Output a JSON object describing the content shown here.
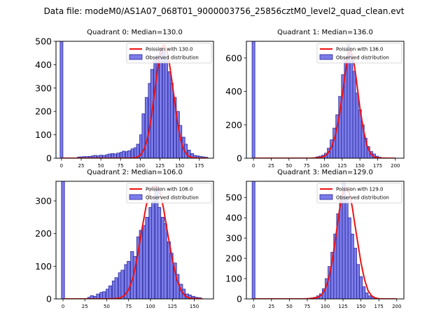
{
  "suptitle": "Data file: modeM0/AS1A07_068T01_9000003756_25856cztM0_level2_quad_clean.evt",
  "colors": {
    "poisson": "#ee1111",
    "bar_fill": "#7b7bea",
    "bar_edge": "#2a2a9a",
    "axis": "#000000"
  },
  "chart_data": [
    {
      "type": "bar",
      "title": "Quadrant 0: Median=130.0",
      "median": 130.0,
      "legend": {
        "poisson": "Poission with 130.0",
        "observed": "Observed distribution",
        "location": "top-right"
      },
      "xlim": [
        -7,
        193
      ],
      "ylim": [
        0,
        500
      ],
      "xticks": [
        0,
        25,
        50,
        75,
        100,
        125,
        150,
        175
      ],
      "yticks": [
        0,
        100,
        200,
        300,
        400,
        500
      ],
      "bin_width": 3.6,
      "zero_bin": 500,
      "bins_x": [
        22,
        25,
        29,
        32,
        36,
        40,
        43,
        47,
        50,
        54,
        58,
        61,
        65,
        68,
        72,
        76,
        79,
        83,
        86,
        90,
        94,
        97,
        101,
        104,
        108,
        112,
        115,
        119,
        122,
        126,
        130,
        133,
        137,
        140,
        144,
        148,
        151,
        155,
        158,
        162,
        166,
        169,
        173,
        176,
        180,
        184
      ],
      "bins_y": [
        5,
        6,
        7,
        7,
        8,
        10,
        12,
        10,
        13,
        12,
        15,
        18,
        20,
        18,
        22,
        25,
        30,
        28,
        32,
        40,
        45,
        60,
        100,
        190,
        260,
        320,
        380,
        420,
        440,
        470,
        460,
        420,
        370,
        320,
        260,
        200,
        140,
        90,
        60,
        35,
        20,
        12,
        10,
        8,
        6,
        4
      ],
      "poisson_x": [
        0,
        5,
        10,
        15,
        20,
        25,
        30,
        35,
        40,
        45,
        50,
        55,
        60,
        65,
        70,
        75,
        80,
        85,
        90,
        95,
        100,
        105,
        108,
        111,
        114,
        117,
        120,
        123,
        126,
        129,
        130,
        131,
        134,
        137,
        140,
        143,
        146,
        149,
        152,
        155,
        160,
        165,
        170,
        175,
        180,
        185
      ],
      "poisson_y": [
        0,
        0,
        0,
        0,
        0,
        0,
        0,
        0,
        0,
        0,
        0,
        0,
        0,
        0,
        0,
        0,
        0,
        0,
        1,
        3,
        12,
        40,
        70,
        115,
        175,
        250,
        330,
        405,
        460,
        482,
        484,
        482,
        455,
        405,
        335,
        260,
        185,
        120,
        70,
        38,
        12,
        3,
        1,
        0,
        0,
        0
      ]
    },
    {
      "type": "bar",
      "title": "Quadrant 1: Median=136.0",
      "median": 136.0,
      "legend": {
        "poisson": "Poission with 136.0",
        "observed": "Observed distribution",
        "location": "top-right"
      },
      "xlim": [
        -10,
        212
      ],
      "ylim": [
        0,
        700
      ],
      "xticks": [
        0,
        25,
        50,
        75,
        100,
        125,
        150,
        175,
        200
      ],
      "yticks": [
        0,
        200,
        400,
        600
      ],
      "bin_width": 4.0,
      "zero_bin": 700,
      "bins_x": [
        90,
        94,
        98,
        102,
        106,
        110,
        114,
        118,
        122,
        126,
        130,
        134,
        138,
        142,
        146,
        150,
        154,
        158,
        162,
        166,
        170,
        174,
        178
      ],
      "bins_y": [
        8,
        12,
        18,
        30,
        60,
        110,
        180,
        260,
        370,
        500,
        600,
        680,
        620,
        520,
        390,
        290,
        200,
        120,
        70,
        40,
        25,
        12,
        6
      ],
      "poisson_x": [
        0,
        10,
        20,
        30,
        40,
        50,
        60,
        70,
        80,
        90,
        95,
        100,
        105,
        110,
        115,
        120,
        125,
        130,
        133,
        136,
        139,
        142,
        145,
        150,
        155,
        160,
        165,
        170,
        175,
        180,
        190,
        200
      ],
      "poisson_y": [
        0,
        0,
        0,
        0,
        0,
        0,
        0,
        0,
        0,
        2,
        5,
        12,
        30,
        68,
        130,
        230,
        370,
        530,
        610,
        650,
        620,
        560,
        470,
        300,
        170,
        75,
        28,
        8,
        2,
        1,
        0,
        0
      ]
    },
    {
      "type": "bar",
      "title": "Quadrant 2: Median=106.0",
      "median": 106.0,
      "legend": {
        "poisson": "Poission with 106.0",
        "observed": "Observed distribution",
        "location": "top-right"
      },
      "xlim": [
        -8,
        172
      ],
      "ylim": [
        0,
        360
      ],
      "xticks": [
        0,
        25,
        50,
        75,
        100,
        125,
        150
      ],
      "yticks": [
        0,
        100,
        200,
        300
      ],
      "bin_width": 3.5,
      "zero_bin": 360,
      "bins_x": [
        30,
        33,
        37,
        40,
        44,
        47,
        51,
        54,
        58,
        61,
        65,
        68,
        72,
        75,
        79,
        82,
        86,
        89,
        93,
        96,
        100,
        103,
        107,
        110,
        114,
        117,
        121,
        124,
        128,
        131,
        135,
        138,
        142,
        145,
        149,
        152,
        156
      ],
      "bins_y": [
        5,
        10,
        8,
        15,
        20,
        22,
        30,
        40,
        55,
        65,
        80,
        88,
        105,
        115,
        145,
        130,
        190,
        210,
        225,
        250,
        280,
        300,
        345,
        280,
        250,
        230,
        175,
        140,
        110,
        75,
        45,
        30,
        15,
        12,
        8,
        5,
        4
      ],
      "poisson_x": [
        0,
        10,
        20,
        30,
        40,
        50,
        60,
        65,
        70,
        75,
        80,
        85,
        90,
        95,
        100,
        103,
        106,
        109,
        112,
        115,
        120,
        125,
        130,
        135,
        140,
        145,
        150,
        160
      ],
      "poisson_y": [
        0,
        0,
        0,
        0,
        0,
        0,
        1,
        3,
        10,
        28,
        65,
        130,
        210,
        285,
        335,
        344,
        345,
        340,
        315,
        275,
        195,
        120,
        60,
        25,
        8,
        2,
        1,
        0
      ]
    },
    {
      "type": "bar",
      "title": "Quadrant 3: Median=129.0",
      "median": 129.0,
      "legend": {
        "poisson": "Poission with 129.0",
        "observed": "Observed distribution",
        "location": "top-right"
      },
      "xlim": [
        -10,
        210
      ],
      "ylim": [
        0,
        580
      ],
      "xticks": [
        0,
        25,
        50,
        75,
        100,
        125,
        150,
        175,
        200
      ],
      "yticks": [
        0,
        100,
        200,
        300,
        400,
        500
      ],
      "bin_width": 4.0,
      "zero_bin": 580,
      "bins_x": [
        82,
        86,
        90,
        94,
        98,
        102,
        106,
        110,
        114,
        118,
        122,
        126,
        130,
        134,
        138,
        142,
        146,
        150,
        154,
        158,
        162,
        166,
        170
      ],
      "bins_y": [
        5,
        8,
        15,
        25,
        50,
        100,
        160,
        230,
        320,
        420,
        490,
        570,
        500,
        400,
        320,
        250,
        170,
        110,
        60,
        30,
        15,
        8,
        5
      ],
      "poisson_x": [
        0,
        10,
        20,
        30,
        40,
        50,
        60,
        70,
        80,
        90,
        95,
        100,
        105,
        110,
        115,
        120,
        123,
        126,
        129,
        132,
        135,
        138,
        141,
        145,
        150,
        155,
        160,
        165,
        170,
        175,
        180,
        190,
        200
      ],
      "poisson_y": [
        0,
        0,
        0,
        0,
        0,
        0,
        0,
        0,
        2,
        8,
        20,
        48,
        100,
        190,
        310,
        440,
        500,
        540,
        550,
        540,
        505,
        450,
        380,
        290,
        180,
        95,
        40,
        15,
        5,
        1,
        0,
        0,
        0
      ]
    }
  ]
}
